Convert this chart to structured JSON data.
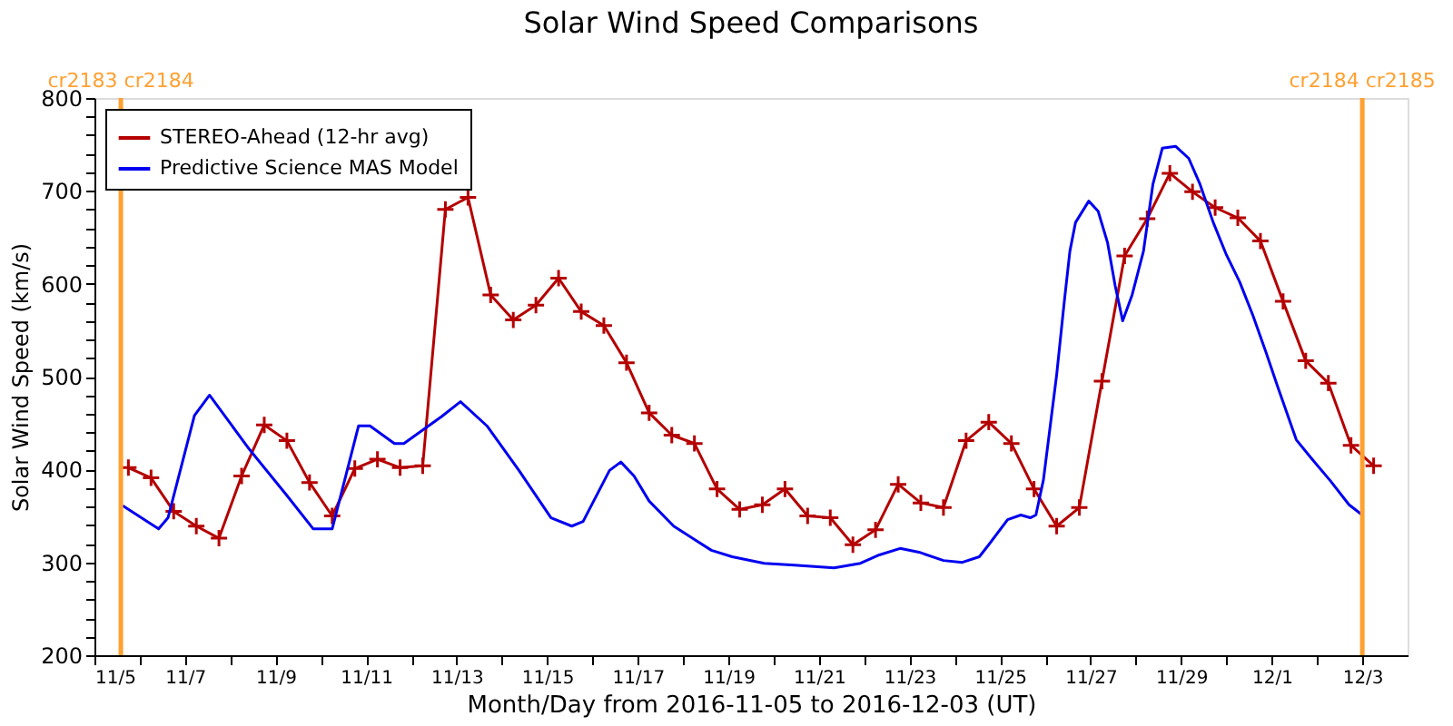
{
  "chart_data": {
    "type": "line",
    "title": "Solar Wind Speed Comparisons",
    "xlabel": "Month/Day from 2016-11-05 to 2016-12-03 (UT)",
    "ylabel": "Solar Wind Speed (km/s)",
    "xlim": [
      "2016-11-05T00:00",
      "2016-12-04T00:00"
    ],
    "xticks": [
      {
        "value": "2016-11-05",
        "label": "11/5"
      },
      {
        "value": "2016-11-06",
        "label": null
      },
      {
        "value": "2016-11-07",
        "label": "11/7"
      },
      {
        "value": "2016-11-08",
        "label": null
      },
      {
        "value": "2016-11-09",
        "label": "11/9"
      },
      {
        "value": "2016-11-10",
        "label": null
      },
      {
        "value": "2016-11-11",
        "label": "11/11"
      },
      {
        "value": "2016-11-12",
        "label": null
      },
      {
        "value": "2016-11-13",
        "label": "11/13"
      },
      {
        "value": "2016-11-14",
        "label": null
      },
      {
        "value": "2016-11-15",
        "label": "11/15"
      },
      {
        "value": "2016-11-16",
        "label": null
      },
      {
        "value": "2016-11-17",
        "label": "11/17"
      },
      {
        "value": "2016-11-18",
        "label": null
      },
      {
        "value": "2016-11-19",
        "label": "11/19"
      },
      {
        "value": "2016-11-20",
        "label": null
      },
      {
        "value": "2016-11-21",
        "label": "11/21"
      },
      {
        "value": "2016-11-22",
        "label": null
      },
      {
        "value": "2016-11-23",
        "label": "11/23"
      },
      {
        "value": "2016-11-24",
        "label": null
      },
      {
        "value": "2016-11-25",
        "label": "11/25"
      },
      {
        "value": "2016-11-26",
        "label": null
      },
      {
        "value": "2016-11-27",
        "label": "11/27"
      },
      {
        "value": "2016-11-28",
        "label": null
      },
      {
        "value": "2016-11-29",
        "label": "11/29"
      },
      {
        "value": "2016-11-30",
        "label": null
      },
      {
        "value": "2016-12-01",
        "label": "12/1"
      },
      {
        "value": "2016-12-02",
        "label": null
      },
      {
        "value": "2016-12-03",
        "label": "12/3"
      }
    ],
    "ylim": [
      200,
      800
    ],
    "yticks": [
      200,
      {
        "value": 220,
        "label": null
      },
      {
        "value": 240,
        "label": null
      },
      {
        "value": 260,
        "label": null
      },
      {
        "value": 280,
        "label": null
      },
      300,
      {
        "value": 320,
        "label": null
      },
      {
        "value": 340,
        "label": null
      },
      {
        "value": 360,
        "label": null
      },
      {
        "value": 380,
        "label": null
      },
      400,
      {
        "value": 420,
        "label": null
      },
      {
        "value": 440,
        "label": null
      },
      {
        "value": 460,
        "label": null
      },
      {
        "value": 480,
        "label": null
      },
      500,
      {
        "value": 520,
        "label": null
      },
      {
        "value": 540,
        "label": null
      },
      {
        "value": 560,
        "label": null
      },
      {
        "value": 580,
        "label": null
      },
      600,
      {
        "value": 620,
        "label": null
      },
      {
        "value": 640,
        "label": null
      },
      {
        "value": 660,
        "label": null
      },
      {
        "value": 680,
        "label": null
      },
      700,
      {
        "value": 720,
        "label": null
      },
      {
        "value": 740,
        "label": null
      },
      {
        "value": 760,
        "label": null
      },
      {
        "value": 780,
        "label": null
      },
      800
    ],
    "grid": false,
    "legend": "top left",
    "ref_lines": [
      {
        "axis": "x",
        "value": "2016-11-05T14:00",
        "label": "cr2183 cr2184",
        "color": "#ffa030"
      },
      {
        "axis": "x",
        "value": "2016-12-03T00:00",
        "label": "cr2184 cr2185",
        "color": "#ffa030"
      }
    ],
    "series": [
      {
        "name": "STEREO-Ahead (12-hr avg)",
        "color": "#b40000",
        "marker": "cross",
        "line_style": "solid",
        "x": [
          "2016-11-05T18:00",
          "2016-11-06T06:00",
          "2016-11-06T18:00",
          "2016-11-07T06:00",
          "2016-11-07T18:00",
          "2016-11-08T06:00",
          "2016-11-08T18:00",
          "2016-11-09T06:00",
          "2016-11-09T18:00",
          "2016-11-10T06:00",
          "2016-11-10T18:00",
          "2016-11-11T06:00",
          "2016-11-11T18:00",
          "2016-11-12T06:00",
          "2016-11-12T18:00",
          "2016-11-13T06:00",
          "2016-11-13T18:00",
          "2016-11-14T06:00",
          "2016-11-14T18:00",
          "2016-11-15T06:00",
          "2016-11-15T18:00",
          "2016-11-16T06:00",
          "2016-11-16T18:00",
          "2016-11-17T06:00",
          "2016-11-17T18:00",
          "2016-11-18T06:00",
          "2016-11-18T18:00",
          "2016-11-19T06:00",
          "2016-11-19T18:00",
          "2016-11-20T06:00",
          "2016-11-20T18:00",
          "2016-11-21T06:00",
          "2016-11-21T18:00",
          "2016-11-22T06:00",
          "2016-11-22T18:00",
          "2016-11-23T06:00",
          "2016-11-23T18:00",
          "2016-11-24T06:00",
          "2016-11-24T18:00",
          "2016-11-25T06:00",
          "2016-11-25T18:00",
          "2016-11-26T06:00",
          "2016-11-26T18:00",
          "2016-11-27T06:00",
          "2016-11-27T18:00",
          "2016-11-28T06:00",
          "2016-11-28T18:00",
          "2016-11-29T06:00",
          "2016-11-29T18:00",
          "2016-11-30T06:00",
          "2016-11-30T18:00",
          "2016-12-01T06:00",
          "2016-12-01T18:00",
          "2016-12-02T06:00",
          "2016-12-02T18:00",
          "2016-12-03T06:00"
        ],
        "values": [
          402,
          391,
          355,
          339,
          326,
          393,
          448,
          431,
          386,
          350,
          401,
          411,
          402,
          404,
          680,
          693,
          588,
          561,
          577,
          606,
          570,
          555,
          515,
          461,
          437,
          428,
          379,
          357,
          362,
          379,
          350,
          348,
          319,
          335,
          384,
          364,
          359,
          431,
          451,
          428,
          379,
          339,
          359,
          495,
          630,
          670,
          719,
          699,
          682,
          671,
          646,
          581,
          517,
          493,
          426,
          404
        ]
      },
      {
        "name": "Predictive Science MAS Model",
        "color": "#0000f0",
        "marker": "none",
        "line_style": "solid",
        "x": [
          "2016-11-05T15:00",
          "2016-11-06T10:00",
          "2016-11-06T15:00",
          "2016-11-07T05:00",
          "2016-11-07T13:00",
          "2016-11-08T10:00",
          "2016-11-09T06:00",
          "2016-11-09T20:00",
          "2016-11-10T06:00",
          "2016-11-10T20:00",
          "2016-11-11T02:00",
          "2016-11-11T15:00",
          "2016-11-11T20:00",
          "2016-11-12T16:00",
          "2016-11-13T02:00",
          "2016-11-13T16:00",
          "2016-11-14T09:00",
          "2016-11-15T02:00",
          "2016-11-15T13:00",
          "2016-11-15T19:00",
          "2016-11-16T09:00",
          "2016-11-16T15:00",
          "2016-11-16T22:00",
          "2016-11-17T06:00",
          "2016-11-17T19:00",
          "2016-11-18T15:00",
          "2016-11-19T02:00",
          "2016-11-19T19:00",
          "2016-11-20T11:00",
          "2016-11-21T08:00",
          "2016-11-21T22:00",
          "2016-11-22T08:00",
          "2016-11-22T19:00",
          "2016-11-23T05:00",
          "2016-11-23T18:00",
          "2016-11-24T04:00",
          "2016-11-24T13:00",
          "2016-11-24T18:00",
          "2016-11-25T04:00",
          "2016-11-25T11:00",
          "2016-11-25T16:00",
          "2016-11-25T19:00",
          "2016-11-25T23:00",
          "2016-11-26T06:00",
          "2016-11-26T10:00",
          "2016-11-26T13:00",
          "2016-11-26T16:00",
          "2016-11-26T23:00",
          "2016-11-27T04:00",
          "2016-11-27T09:00",
          "2016-11-27T13:00",
          "2016-11-27T17:00",
          "2016-11-27T22:00",
          "2016-11-28T04:00",
          "2016-11-28T09:00",
          "2016-11-28T14:00",
          "2016-11-28T21:00",
          "2016-11-29T04:00",
          "2016-11-29T10:00",
          "2016-11-29T17:00",
          "2016-11-30T00:00",
          "2016-11-30T07:00",
          "2016-11-30T14:00",
          "2016-11-30T21:00",
          "2016-12-01T03:00",
          "2016-12-01T13:00",
          "2016-12-01T21:00",
          "2016-12-02T07:00",
          "2016-12-02T17:00",
          "2016-12-03T00:00"
        ],
        "values": [
          361,
          336,
          348,
          458,
          480,
          422,
          372,
          336,
          336,
          447,
          447,
          428,
          428,
          457,
          473,
          447,
          399,
          348,
          339,
          344,
          399,
          408,
          393,
          366,
          339,
          313,
          306,
          299,
          297,
          294,
          299,
          308,
          315,
          311,
          302,
          300,
          306,
          319,
          346,
          351,
          348,
          351,
          389,
          502,
          580,
          635,
          666,
          689,
          678,
          644,
          598,
          560,
          588,
          635,
          707,
          746,
          748,
          735,
          707,
          666,
          631,
          602,
          566,
          526,
          490,
          432,
          412,
          388,
          362,
          351
        ]
      }
    ]
  }
}
